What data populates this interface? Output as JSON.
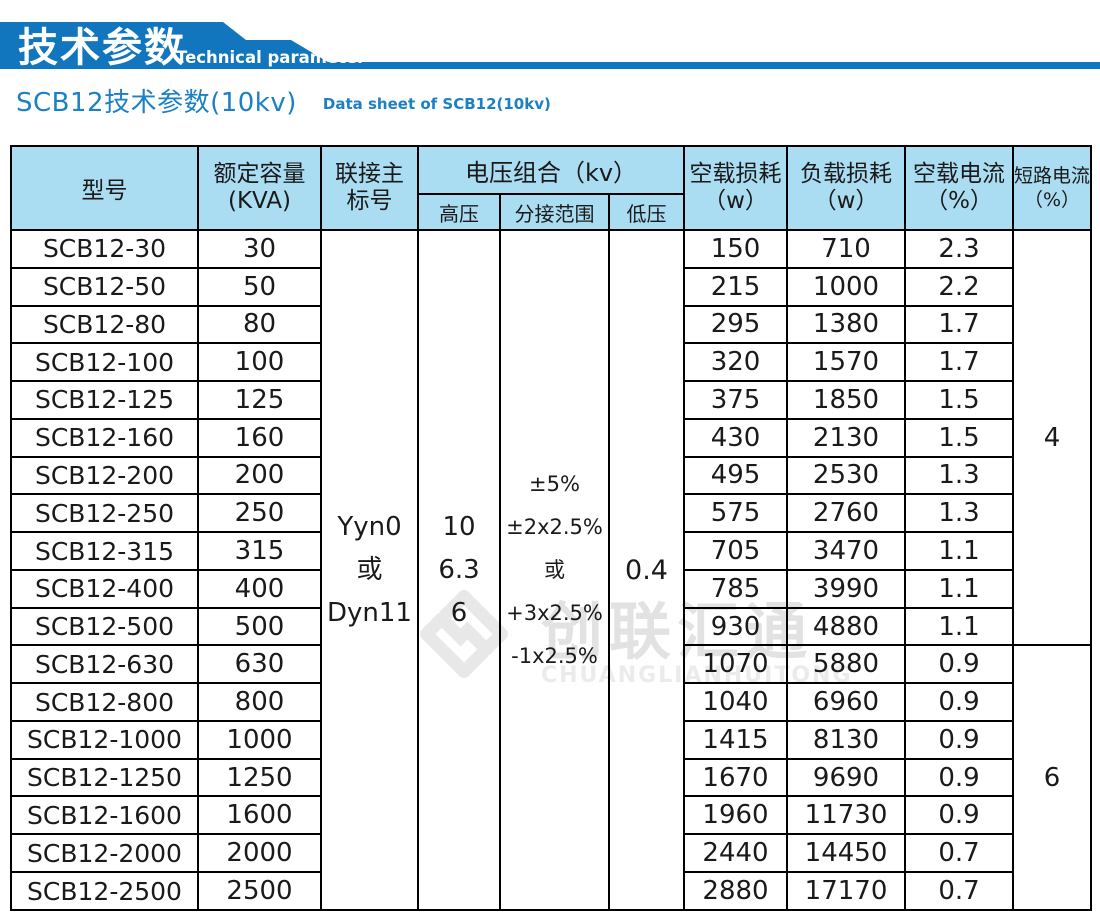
{
  "banner": {
    "title_cn": "技术参数",
    "title_en": "Technical parameter"
  },
  "page_title": {
    "cn": "SCB12技术参数(10kv)",
    "en": "Data sheet of SCB12(10kv)"
  },
  "colors": {
    "banner_blue": "#1176bd",
    "title_blue": "#1b80c4",
    "table_header_bg": "#aadcf2",
    "border_black": "#000000",
    "watermark_gray": "#e2e2e2"
  },
  "watermark": {
    "logo": "diamond-s-logo-icon",
    "cn": "创联汇通",
    "en": "CHUANGLIANHUITONG"
  },
  "table": {
    "headers": {
      "model": "型号",
      "capacity": [
        "额定容量",
        "(KVA)"
      ],
      "connection": [
        "联接主",
        "标号"
      ],
      "voltage_group": "电压组合（kv）",
      "high_voltage": "高压",
      "tap_range": "分接范围",
      "low_voltage": "低压",
      "no_load_loss": [
        "空载损耗",
        "（w）"
      ],
      "load_loss": [
        "负载损耗",
        "（w）"
      ],
      "no_load_current": [
        "空载电流",
        "（%）"
      ],
      "short_circuit_current": [
        "短路电流",
        "（%）"
      ]
    },
    "merged": {
      "connection": [
        "Yyn0",
        "或",
        "Dyn11"
      ],
      "high_voltage": [
        "10",
        "6.3",
        "6"
      ],
      "tap_range": [
        "±5%",
        "±2x2.5%",
        "或+3x2.5%",
        "-1x2.5%"
      ],
      "low_voltage": "0.4",
      "short_circuit_rows_1_11": "4",
      "short_circuit_rows_12_18": "6"
    },
    "row_columns": [
      "model",
      "capacity_kva",
      "no_load_loss_w",
      "load_loss_w",
      "no_load_current_pct"
    ],
    "rows": [
      [
        "SCB12-30",
        "30",
        "150",
        "710",
        "2.3"
      ],
      [
        "SCB12-50",
        "50",
        "215",
        "1000",
        "2.2"
      ],
      [
        "SCB12-80",
        "80",
        "295",
        "1380",
        "1.7"
      ],
      [
        "SCB12-100",
        "100",
        "320",
        "1570",
        "1.7"
      ],
      [
        "SCB12-125",
        "125",
        "375",
        "1850",
        "1.5"
      ],
      [
        "SCB12-160",
        "160",
        "430",
        "2130",
        "1.5"
      ],
      [
        "SCB12-200",
        "200",
        "495",
        "2530",
        "1.3"
      ],
      [
        "SCB12-250",
        "250",
        "575",
        "2760",
        "1.3"
      ],
      [
        "SCB12-315",
        "315",
        "705",
        "3470",
        "1.1"
      ],
      [
        "SCB12-400",
        "400",
        "785",
        "3990",
        "1.1"
      ],
      [
        "SCB12-500",
        "500",
        "930",
        "4880",
        "1.1"
      ],
      [
        "SCB12-630",
        "630",
        "1070",
        "5880",
        "0.9"
      ],
      [
        "SCB12-800",
        "800",
        "1040",
        "6960",
        "0.9"
      ],
      [
        "SCB12-1000",
        "1000",
        "1415",
        "8130",
        "0.9"
      ],
      [
        "SCB12-1250",
        "1250",
        "1670",
        "9690",
        "0.9"
      ],
      [
        "SCB12-1600",
        "1600",
        "1960",
        "11730",
        "0.9"
      ],
      [
        "SCB12-2000",
        "2000",
        "2440",
        "14450",
        "0.7"
      ],
      [
        "SCB12-2500",
        "2500",
        "2880",
        "17170",
        "0.7"
      ]
    ]
  }
}
